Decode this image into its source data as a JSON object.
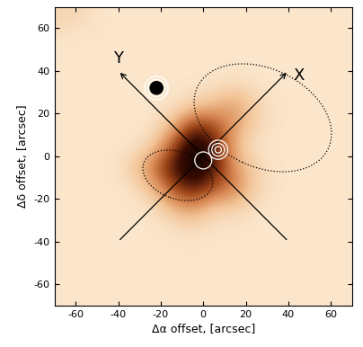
{
  "chart_data": {
    "type": "heatmap",
    "xlabel": "Δα offset, [arcsec]",
    "ylabel": "Δδ offset, [arcsec]",
    "xlim": [
      -70,
      70
    ],
    "ylim": [
      -70,
      70
    ],
    "xticks": [
      -60,
      -40,
      -20,
      0,
      20,
      40,
      60
    ],
    "yticks": [
      -60,
      -40,
      -20,
      0,
      20,
      40,
      60
    ],
    "x": [
      -65,
      -55,
      -45,
      -35,
      -25,
      -15,
      -5,
      5,
      15,
      25,
      35,
      45,
      55,
      65
    ],
    "y": [
      -65,
      -55,
      -45,
      -35,
      -25,
      -15,
      -5,
      5,
      15,
      25,
      35,
      45,
      55,
      65
    ],
    "cells": [
      [
        1,
        1,
        1,
        1,
        1,
        1,
        1,
        1,
        1,
        1,
        1,
        1,
        1,
        1
      ],
      [
        1,
        1,
        1,
        1,
        1,
        1,
        1,
        1,
        1,
        1,
        1,
        1,
        1,
        1
      ],
      [
        1,
        1,
        1,
        1,
        1,
        1,
        1,
        1,
        1,
        1,
        1,
        1,
        1,
        1
      ],
      [
        1,
        1,
        1,
        1,
        1,
        1,
        1.5,
        1,
        1,
        1,
        1,
        1,
        1,
        1
      ],
      [
        1,
        1,
        1,
        1,
        1,
        3,
        4,
        2,
        2,
        1,
        1,
        1,
        1,
        1
      ],
      [
        1,
        1,
        1,
        1,
        3,
        6,
        8,
        6,
        5,
        2,
        1,
        1,
        1,
        1
      ],
      [
        1,
        1,
        1,
        2,
        5,
        8,
        10,
        8,
        4,
        2,
        1,
        1,
        1,
        1
      ],
      [
        1,
        1,
        1,
        1,
        2,
        6,
        10,
        8,
        3,
        1,
        1,
        1,
        1,
        1
      ],
      [
        1,
        1,
        1,
        1,
        1,
        3,
        7,
        6,
        4,
        2,
        1,
        1,
        1,
        1
      ],
      [
        1,
        1,
        1,
        1,
        1,
        1,
        2,
        3,
        4,
        2,
        1,
        1,
        1,
        1
      ],
      [
        1,
        1,
        1,
        1,
        1,
        1,
        1,
        1,
        1.5,
        1,
        1,
        1,
        1,
        1
      ],
      [
        1,
        1,
        1,
        1,
        1,
        1,
        1,
        1,
        1,
        1,
        1,
        1,
        1,
        1
      ],
      [
        1,
        1,
        1,
        1,
        1,
        1,
        1,
        1,
        1,
        1,
        1,
        1,
        1,
        1
      ],
      [
        2,
        1.5,
        1,
        1,
        1,
        1,
        1,
        1,
        1,
        1,
        1,
        1,
        1,
        1
      ]
    ],
    "arrows": [
      {
        "label": "X",
        "start": [
          -40,
          -40
        ],
        "end": [
          40,
          40
        ],
        "label_at": [
          45,
          38
        ]
      },
      {
        "label": "Y",
        "start": [
          40,
          -40
        ],
        "end": [
          -40,
          40
        ],
        "label_at": [
          -40,
          46
        ]
      }
    ],
    "ellipses": [
      {
        "center": [
          28,
          18
        ],
        "width": 68,
        "height": 46,
        "angle": -25,
        "line_style": "dotted"
      },
      {
        "center": [
          -12,
          -9
        ],
        "width": 34,
        "height": 22,
        "angle": -20,
        "line_style": "dotted"
      }
    ],
    "contours": [
      {
        "center": [
          7,
          3
        ],
        "radii": [
          1.5,
          3,
          4.5
        ]
      },
      {
        "center": [
          0,
          -2
        ],
        "radii": [
          4
        ]
      },
      {
        "center": [
          -22,
          32
        ],
        "radii": [
          4,
          5.5
        ]
      }
    ],
    "sources": [
      {
        "x": -22,
        "y": 32
      }
    ]
  }
}
